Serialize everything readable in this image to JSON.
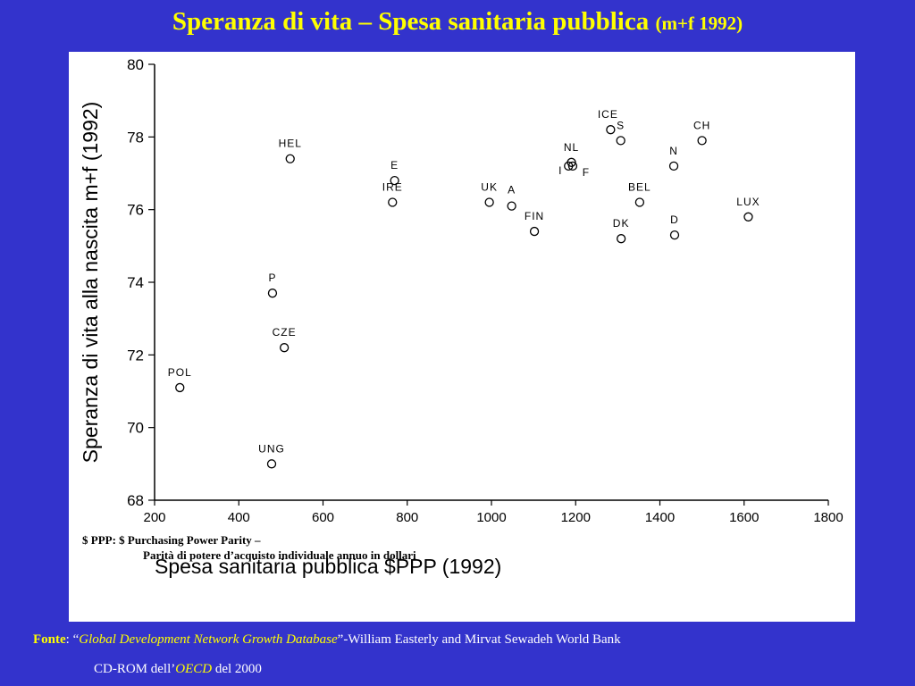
{
  "slide": {
    "title_main": "Speranza di vita – Spesa sanitaria pubblica",
    "title_suffix": "(m+f 1992)"
  },
  "chart_data": {
    "type": "scatter",
    "xlabel": "Spesa sanitaria pubblica $PPP (1992)",
    "ylabel": "Speranza di vita alla nascita m+f (1992)",
    "xlim": [
      200,
      1800
    ],
    "ylim": [
      68,
      80
    ],
    "xticks": [
      "200",
      "400",
      "600",
      "800",
      "1000",
      "1200",
      "1400",
      "1600",
      "1800"
    ],
    "yticks": [
      "68",
      "70",
      "72",
      "74",
      "76",
      "78",
      "80"
    ],
    "grid": false,
    "points": [
      {
        "label": "POL",
        "x": 260,
        "y": 71.1
      },
      {
        "label": "UNG",
        "x": 478,
        "y": 69.0
      },
      {
        "label": "CZE",
        "x": 508,
        "y": 72.2
      },
      {
        "label": "P",
        "x": 480,
        "y": 73.7
      },
      {
        "label": "HEL",
        "x": 522,
        "y": 77.4
      },
      {
        "label": "E",
        "x": 770,
        "y": 76.8
      },
      {
        "label": "IRE",
        "x": 765,
        "y": 76.2
      },
      {
        "label": "UK",
        "x": 995,
        "y": 76.2
      },
      {
        "label": "A",
        "x": 1048,
        "y": 76.1
      },
      {
        "label": "FIN",
        "x": 1102,
        "y": 75.4
      },
      {
        "label": "NL",
        "x": 1190,
        "y": 77.3
      },
      {
        "label": "I",
        "x": 1183,
        "y": 77.2
      },
      {
        "label": "F",
        "x": 1193,
        "y": 77.2
      },
      {
        "label": "ICE",
        "x": 1283,
        "y": 78.2
      },
      {
        "label": "S",
        "x": 1307,
        "y": 77.9
      },
      {
        "label": "DK",
        "x": 1308,
        "y": 75.2
      },
      {
        "label": "BEL",
        "x": 1352,
        "y": 76.2
      },
      {
        "label": "N",
        "x": 1433,
        "y": 77.2
      },
      {
        "label": "D",
        "x": 1435,
        "y": 75.3
      },
      {
        "label": "CH",
        "x": 1500,
        "y": 77.9
      },
      {
        "label": "LUX",
        "x": 1610,
        "y": 75.8
      }
    ]
  },
  "notes": {
    "line1": "$ PPP: $ Purchasing Power Parity –",
    "line2": "Parità di potere d’acquisto individuale annuo in dollari"
  },
  "source": {
    "label": "Fonte",
    "sep": ": “",
    "title": "Global Development Network Growth Database",
    "rest": "”-William Easterly and Mirvat Sewadeh World Bank",
    "line2_pre": "CD-ROM dell’",
    "line2_org": "OECD",
    "line2_post": " del 2000"
  }
}
